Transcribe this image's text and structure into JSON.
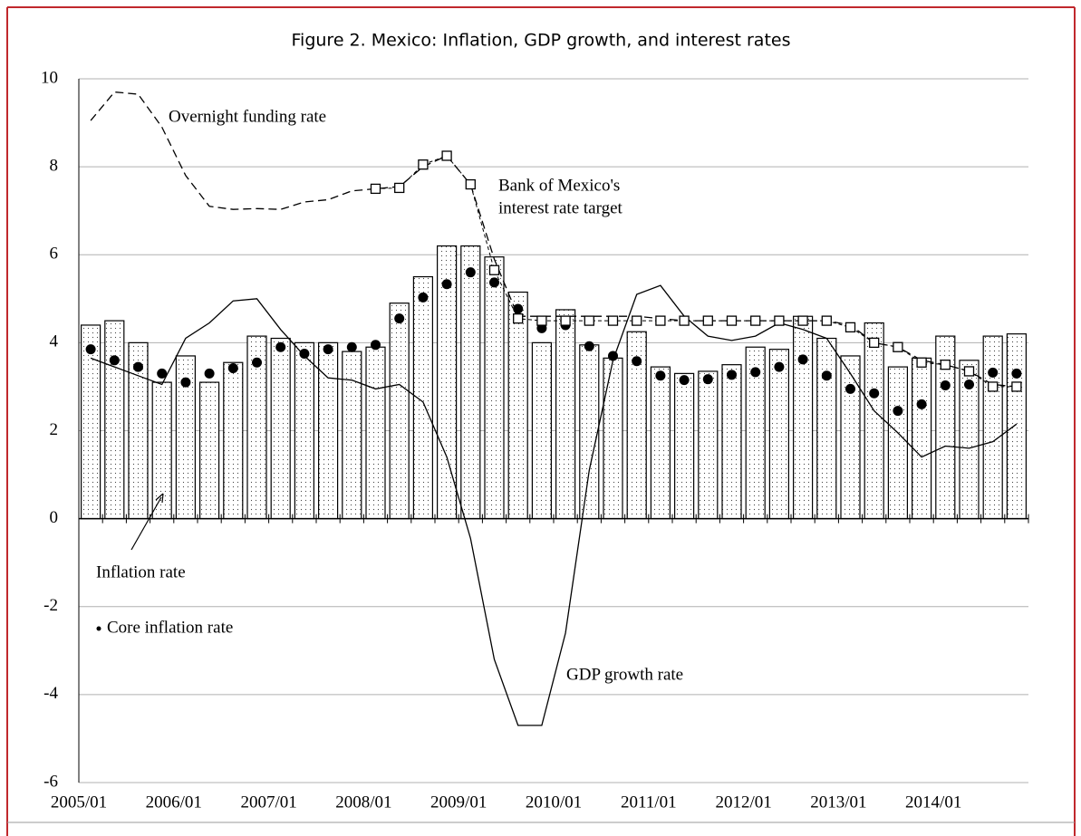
{
  "chart_data": {
    "type": "combo",
    "title": "Figure 2. Mexico: Inflation, GDP growth, and interest rates",
    "categories": [
      "2005/01",
      null,
      null,
      null,
      "2006/01",
      null,
      null,
      null,
      "2007/01",
      null,
      null,
      null,
      "2008/01",
      null,
      null,
      null,
      "2009/01",
      null,
      null,
      null,
      "2010/01",
      null,
      null,
      null,
      "2011/01",
      null,
      null,
      null,
      "2012/01",
      null,
      null,
      null,
      "2013/01",
      null,
      null,
      null,
      "2014/01",
      null,
      null,
      null
    ],
    "ylim": [
      -6,
      10
    ],
    "yticks": [
      -6,
      -4,
      -2,
      0,
      2,
      4,
      6,
      8,
      10
    ],
    "grid": true,
    "series": [
      {
        "name": "Inflation rate",
        "type": "bar",
        "color": "#000000",
        "values": [
          4.4,
          4.5,
          4.0,
          3.1,
          3.7,
          3.1,
          3.55,
          4.15,
          4.1,
          4.0,
          4.0,
          3.8,
          3.9,
          4.9,
          5.5,
          6.2,
          6.2,
          5.95,
          5.15,
          4.0,
          4.75,
          3.95,
          3.65,
          4.25,
          3.45,
          3.3,
          3.35,
          3.5,
          3.9,
          3.85,
          4.6,
          4.1,
          3.7,
          4.45,
          3.45,
          3.65,
          4.15,
          3.6,
          4.15,
          4.2
        ]
      },
      {
        "name": "Core inflation rate",
        "type": "dots",
        "color": "#000000",
        "values": [
          3.85,
          3.6,
          3.45,
          3.3,
          3.1,
          3.3,
          3.42,
          3.55,
          3.9,
          3.75,
          3.85,
          3.9,
          3.95,
          4.55,
          5.03,
          5.33,
          5.6,
          5.37,
          4.77,
          4.33,
          4.4,
          3.92,
          3.7,
          3.58,
          3.25,
          3.15,
          3.17,
          3.27,
          3.33,
          3.45,
          3.62,
          3.25,
          2.95,
          2.85,
          2.45,
          2.6,
          3.03,
          3.05,
          3.32,
          3.3
        ]
      },
      {
        "name": "GDP growth rate",
        "type": "line",
        "color": "#000000",
        "values": [
          3.65,
          3.45,
          3.25,
          3.05,
          4.1,
          4.45,
          4.95,
          5.0,
          4.3,
          3.7,
          3.2,
          3.15,
          2.95,
          3.05,
          2.65,
          1.4,
          -0.45,
          -3.2,
          -4.7,
          -4.7,
          -2.6,
          1.1,
          3.6,
          5.1,
          5.3,
          4.6,
          4.15,
          4.05,
          4.15,
          4.45,
          4.3,
          4.1,
          3.3,
          2.45,
          1.95,
          1.4,
          1.65,
          1.6,
          1.75,
          2.15
        ]
      },
      {
        "name": "Overnight funding rate",
        "type": "dashed",
        "color": "#000000",
        "values": [
          9.05,
          9.7,
          9.65,
          8.9,
          7.8,
          7.1,
          7.03,
          7.05,
          7.03,
          7.2,
          7.25,
          7.45,
          7.5,
          7.55,
          8.0,
          8.25,
          7.6,
          5.9,
          4.6,
          4.6,
          4.6,
          4.6,
          4.6,
          4.6,
          4.55,
          4.5,
          4.5,
          4.5,
          4.5,
          4.5,
          4.5,
          4.5,
          4.4,
          4.0,
          3.9,
          3.6,
          3.5,
          3.35,
          3.05,
          3.0
        ]
      },
      {
        "label_lines": [
          "Bank of Mexico's",
          "interest rate target"
        ],
        "type": "squares",
        "color": "#000000",
        "values": [
          null,
          null,
          null,
          null,
          null,
          null,
          null,
          null,
          null,
          null,
          null,
          null,
          7.5,
          7.52,
          8.05,
          8.25,
          7.6,
          5.65,
          4.55,
          4.5,
          4.5,
          4.5,
          4.5,
          4.5,
          4.5,
          4.5,
          4.5,
          4.5,
          4.5,
          4.5,
          4.5,
          4.5,
          4.35,
          4.0,
          3.9,
          3.55,
          3.5,
          3.35,
          3.0,
          3.0
        ]
      }
    ]
  }
}
